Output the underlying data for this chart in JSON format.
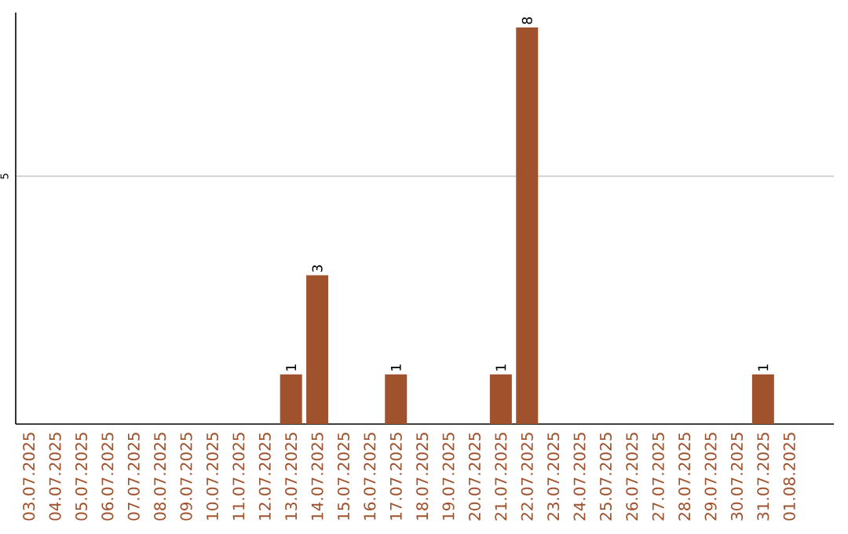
{
  "chart_data": {
    "type": "bar",
    "categories": [
      "03.07.2025",
      "04.07.2025",
      "05.07.2025",
      "06.07.2025",
      "07.07.2025",
      "08.07.2025",
      "09.07.2025",
      "10.07.2025",
      "11.07.2025",
      "12.07.2025",
      "13.07.2025",
      "14.07.2025",
      "15.07.2025",
      "16.07.2025",
      "17.07.2025",
      "18.07.2025",
      "19.07.2025",
      "20.07.2025",
      "21.07.2025",
      "22.07.2025",
      "23.07.2025",
      "24.07.2025",
      "25.07.2025",
      "26.07.2025",
      "27.07.2025",
      "28.07.2025",
      "29.07.2025",
      "30.07.2025",
      "31.07.2025",
      "01.08.2025"
    ],
    "values": [
      0,
      0,
      0,
      0,
      0,
      0,
      0,
      0,
      0,
      0,
      1,
      3,
      0,
      0,
      1,
      0,
      0,
      0,
      1,
      8,
      0,
      0,
      0,
      0,
      0,
      0,
      0,
      0,
      1,
      0
    ],
    "value_labels": [
      null,
      null,
      null,
      null,
      null,
      null,
      null,
      null,
      null,
      null,
      "1",
      "3",
      null,
      null,
      "1",
      null,
      null,
      null,
      "1",
      "8",
      null,
      null,
      null,
      null,
      null,
      null,
      null,
      null,
      "1",
      null
    ],
    "color": "#a0522d",
    "ylim": [
      0,
      8.3
    ],
    "yticks": [
      5
    ],
    "grid": "y"
  }
}
